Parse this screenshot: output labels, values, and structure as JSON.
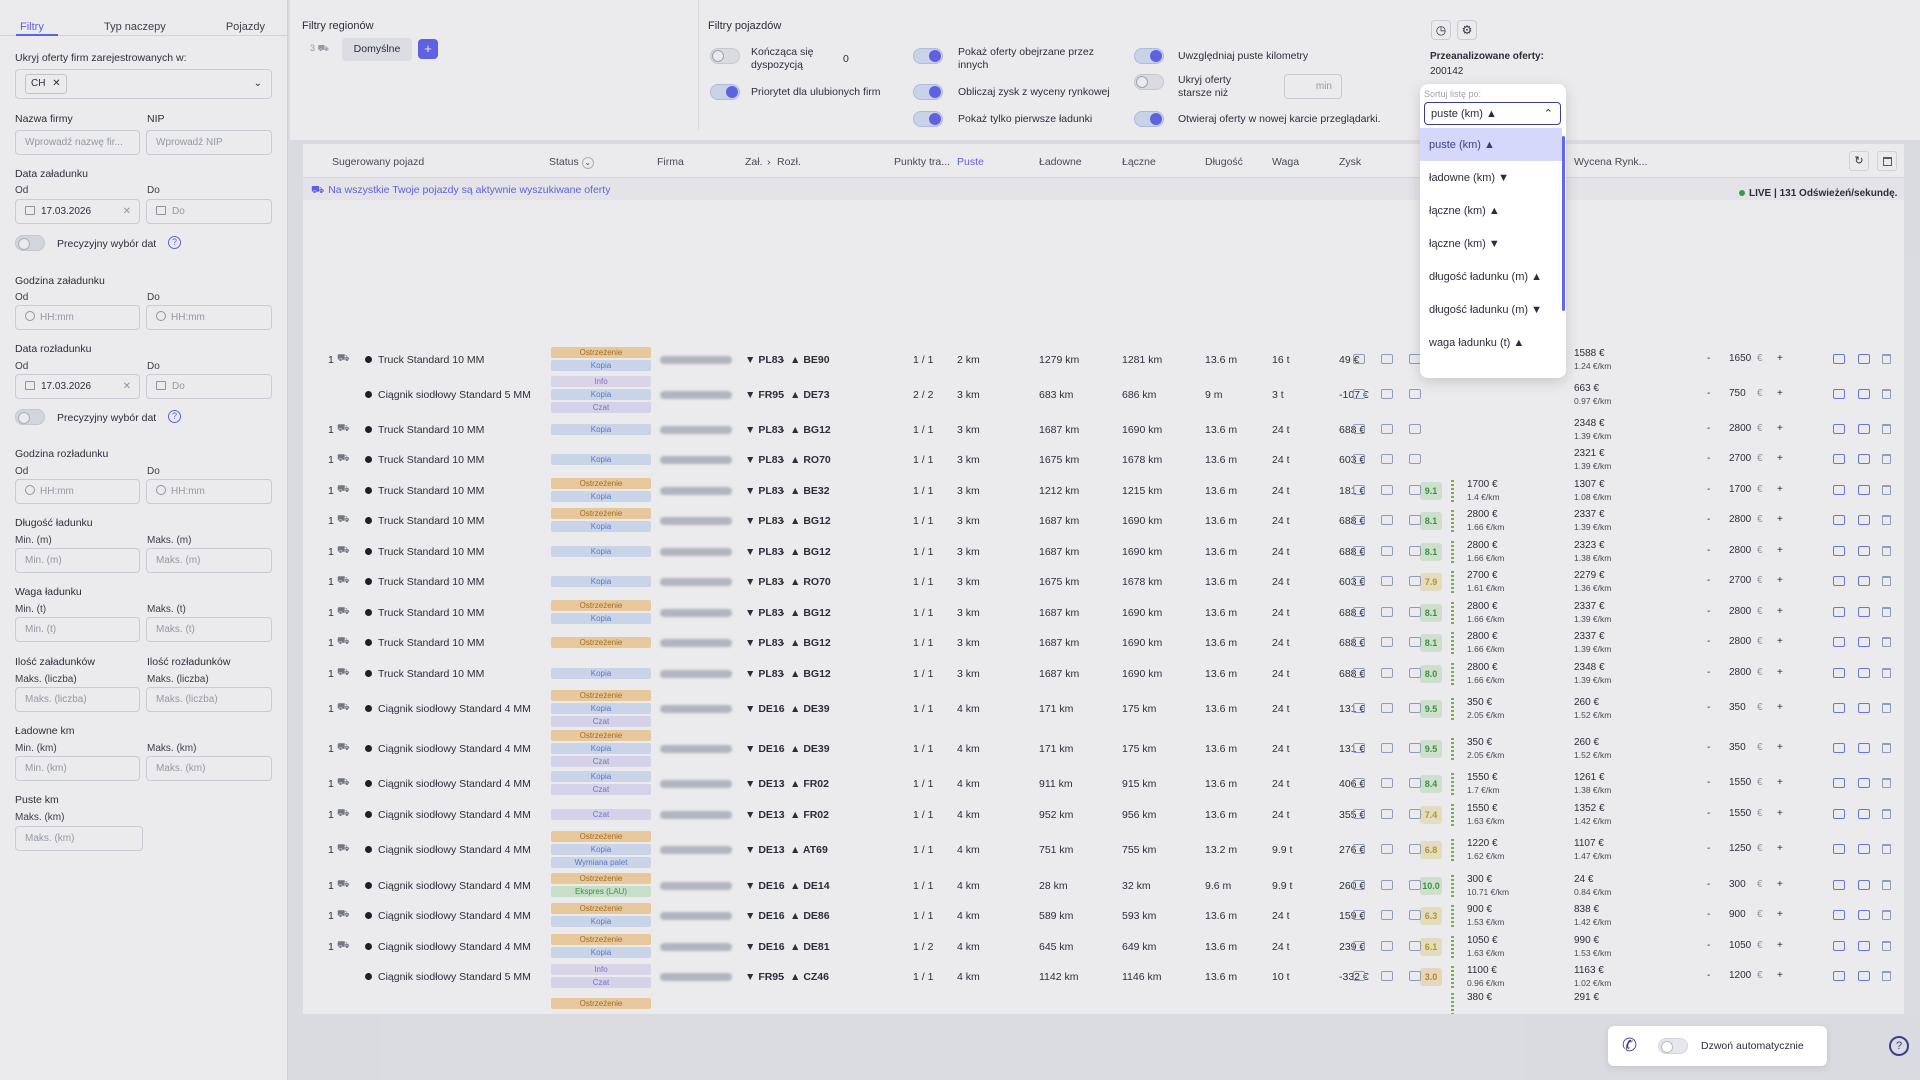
{
  "sidebar": {
    "tabs": [
      "Filtry",
      "Typ naczepy",
      "Pojazdy"
    ],
    "hide_label": "Ukryj oferty firm zarejestrowanych w:",
    "country_chip": "CH",
    "company_label": "Nazwa firmy",
    "company_ph": "Wprowadź nazwę fir...",
    "nip_label": "NIP",
    "nip_ph": "Wprowadź NIP",
    "load_date_label": "Data załadunku",
    "from": "Od",
    "to": "Do",
    "load_date_from": "17.03.2026",
    "date_ph": "Do",
    "precise_label": "Precyzyjny wybór dat",
    "load_hour_label": "Godzina załadunku",
    "time_ph": "HH:mm",
    "unload_date_label": "Data rozładunku",
    "unload_date_from": "17.03.2026",
    "unload_hour_label": "Godzina rozładunku",
    "length_label": "Długość ładunku",
    "min_m": "Min. (m)",
    "max_m": "Maks. (m)",
    "weight_label": "Waga ładunku",
    "min_t": "Min. (t)",
    "max_t": "Maks. (t)",
    "loads_count_label": "Ilość załadunków",
    "unloads_count_label": "Ilość rozładunków",
    "max_count": "Maks. (liczba)",
    "laden_km_label": "Ładowne km",
    "min_km": "Min. (km)",
    "max_km": "Maks. (km)",
    "empty_km_label": "Puste km"
  },
  "regions": {
    "title": "Filtry regionów",
    "count": "3",
    "default": "Domyślne",
    "add": "+"
  },
  "vehicle_filters": {
    "title": "Filtry pojazdów",
    "ends_with": "Kończąca się dyspozycją",
    "ends_value": "0",
    "priority": "Priorytet dla ulubionych firm",
    "viewed": "Pokaż oferty obejrzane przez innych",
    "profit": "Obliczaj zysk z wyceny rynkowej",
    "first_loads": "Pokaż tylko pierwsze ładunki",
    "empty_km": "Uwzględniaj puste kilometry",
    "hide_older": "Ukryj oferty starsze niż",
    "min_unit": "min",
    "new_tab": "Otwieraj oferty w nowej karcie przeglądarki."
  },
  "analyzed": {
    "label": "Przeanalizowane oferty:",
    "value": "200142"
  },
  "table": {
    "headers": [
      "Sugerowany pojazd",
      "Status",
      "Firma",
      "Zał.",
      "Rozł.",
      "Punkty tra...",
      "Puste",
      "Ładowne",
      "Łączne",
      "Długość",
      "Waga",
      "Zysk",
      "Wycena Rynk..."
    ],
    "notice": "Na wszystkie Twoje pojazdy są aktywnie wyszukiwane oferty",
    "live": "LIVE | 131 Odświeżeń/sekundę.",
    "rows": [
      {
        "n": "1",
        "veh": "Truck Standard 10 MM",
        "badges": [
          "Ostrzeżenie",
          "Kopia"
        ],
        "from": "PL83",
        "to": "BE90",
        "pts": "1 / 1",
        "empty": "2 km",
        "laden": "1279 km",
        "total": "1281 km",
        "len": "13.6 m",
        "w": "16 t",
        "profit": "49 €",
        "price": "",
        "perkm": "",
        "market": "1588 €",
        "mkm": "1.24 €/km",
        "bid": "1650"
      },
      {
        "n": "",
        "veh": "Ciągnik siodłowy Standard 5 MM",
        "badges": [
          "Info",
          "Kopia",
          "Czat"
        ],
        "from": "FR95",
        "to": "DE73",
        "pts": "2 / 2",
        "empty": "3 km",
        "laden": "683 km",
        "total": "686 km",
        "len": "9 m",
        "w": "3 t",
        "profit": "-107 €",
        "price": "",
        "perkm": "",
        "market": "663 €",
        "mkm": "0.97 €/km",
        "bid": "750"
      },
      {
        "n": "1",
        "veh": "Truck Standard 10 MM",
        "badges": [
          "Kopia"
        ],
        "from": "PL83",
        "to": "BG12",
        "pts": "1 / 1",
        "empty": "3 km",
        "laden": "1687 km",
        "total": "1690 km",
        "len": "13.6 m",
        "w": "24 t",
        "profit": "688 €",
        "price": "",
        "perkm": "",
        "market": "2348 €",
        "mkm": "1.39 €/km",
        "bid": "2800"
      },
      {
        "n": "1",
        "veh": "Truck Standard 10 MM",
        "badges": [
          "Kopia"
        ],
        "from": "PL83",
        "to": "RO70",
        "pts": "1 / 1",
        "empty": "3 km",
        "laden": "1675 km",
        "total": "1678 km",
        "len": "13.6 m",
        "w": "24 t",
        "profit": "603 €",
        "price": "",
        "perkm": "",
        "market": "2321 €",
        "mkm": "1.39 €/km",
        "bid": "2700"
      },
      {
        "n": "1",
        "veh": "Truck Standard 10 MM",
        "badges": [
          "Ostrzeżenie",
          "Kopia"
        ],
        "from": "PL83",
        "to": "BE32",
        "pts": "1 / 1",
        "empty": "3 km",
        "laden": "1212 km",
        "total": "1215 km",
        "len": "13.6 m",
        "w": "24 t",
        "profit": "181 €",
        "score": "9.1",
        "price": "1700 €",
        "perkm": "1.4 €/km",
        "market": "1307 €",
        "mkm": "1.08 €/km",
        "bid": "1700"
      },
      {
        "n": "1",
        "veh": "Truck Standard 10 MM",
        "badges": [
          "Ostrzeżenie",
          "Kopia"
        ],
        "from": "PL83",
        "to": "BG12",
        "pts": "1 / 1",
        "empty": "3 km",
        "laden": "1687 km",
        "total": "1690 km",
        "len": "13.6 m",
        "w": "24 t",
        "profit": "688 €",
        "score": "8.1",
        "price": "2800 €",
        "perkm": "1.66 €/km",
        "market": "2337 €",
        "mkm": "1.39 €/km",
        "bid": "2800"
      },
      {
        "n": "1",
        "veh": "Truck Standard 10 MM",
        "badges": [
          "Kopia"
        ],
        "from": "PL83",
        "to": "BG12",
        "pts": "1 / 1",
        "empty": "3 km",
        "laden": "1687 km",
        "total": "1690 km",
        "len": "13.6 m",
        "w": "24 t",
        "profit": "688 €",
        "score": "8.1",
        "price": "2800 €",
        "perkm": "1.66 €/km",
        "market": "2323 €",
        "mkm": "1.38 €/km",
        "bid": "2800"
      },
      {
        "n": "1",
        "veh": "Truck Standard 10 MM",
        "badges": [
          "Kopia"
        ],
        "from": "PL83",
        "to": "RO70",
        "pts": "1 / 1",
        "empty": "3 km",
        "laden": "1675 km",
        "total": "1678 km",
        "len": "13.6 m",
        "w": "24 t",
        "profit": "603 €",
        "score": "7.9",
        "price": "2700 €",
        "perkm": "1.61 €/km",
        "market": "2279 €",
        "mkm": "1.36 €/km",
        "bid": "2700"
      },
      {
        "n": "1",
        "veh": "Truck Standard 10 MM",
        "badges": [
          "Ostrzeżenie",
          "Kopia"
        ],
        "from": "PL83",
        "to": "BG12",
        "pts": "1 / 1",
        "empty": "3 km",
        "laden": "1687 km",
        "total": "1690 km",
        "len": "13.6 m",
        "w": "24 t",
        "profit": "688 €",
        "score": "8.1",
        "price": "2800 €",
        "perkm": "1.66 €/km",
        "market": "2337 €",
        "mkm": "1.39 €/km",
        "bid": "2800"
      },
      {
        "n": "1",
        "veh": "Truck Standard 10 MM",
        "badges": [
          "Ostrzeżenie"
        ],
        "from": "PL83",
        "to": "BG12",
        "pts": "1 / 1",
        "empty": "3 km",
        "laden": "1687 km",
        "total": "1690 km",
        "len": "13.6 m",
        "w": "24 t",
        "profit": "688 €",
        "score": "8.1",
        "price": "2800 €",
        "perkm": "1.66 €/km",
        "market": "2337 €",
        "mkm": "1.39 €/km",
        "bid": "2800"
      },
      {
        "n": "1",
        "veh": "Truck Standard 10 MM",
        "badges": [
          "Kopia"
        ],
        "from": "PL83",
        "to": "BG12",
        "pts": "1 / 1",
        "empty": "3 km",
        "laden": "1687 km",
        "total": "1690 km",
        "len": "13.6 m",
        "w": "24 t",
        "profit": "688 €",
        "score": "8.0",
        "price": "2800 €",
        "perkm": "1.66 €/km",
        "market": "2348 €",
        "mkm": "1.39 €/km",
        "bid": "2800"
      },
      {
        "n": "1",
        "veh": "Ciągnik siodłowy Standard 4 MM",
        "badges": [
          "Ostrzeżenie",
          "Kopia",
          "Czat"
        ],
        "from": "DE16",
        "to": "DE39",
        "pts": "1 / 1",
        "empty": "4 km",
        "laden": "171 km",
        "total": "175 km",
        "len": "13.6 m",
        "w": "24 t",
        "profit": "131 €",
        "score": "9.5",
        "price": "350 €",
        "perkm": "2.05 €/km",
        "market": "260 €",
        "mkm": "1.52 €/km",
        "bid": "350"
      },
      {
        "n": "1",
        "veh": "Ciągnik siodłowy Standard 4 MM",
        "badges": [
          "Ostrzeżenie",
          "Kopia",
          "Czat"
        ],
        "from": "DE16",
        "to": "DE39",
        "pts": "1 / 1",
        "empty": "4 km",
        "laden": "171 km",
        "total": "175 km",
        "len": "13.6 m",
        "w": "24 t",
        "profit": "131 €",
        "score": "9.5",
        "price": "350 €",
        "perkm": "2.05 €/km",
        "market": "260 €",
        "mkm": "1.52 €/km",
        "bid": "350"
      },
      {
        "n": "1",
        "veh": "Ciągnik siodłowy Standard 4 MM",
        "badges": [
          "Kopia",
          "Czat"
        ],
        "from": "DE13",
        "to": "FR02",
        "pts": "1 / 1",
        "empty": "4 km",
        "laden": "911 km",
        "total": "915 km",
        "len": "13.6 m",
        "w": "24 t",
        "profit": "406 €",
        "score": "8.4",
        "price": "1550 €",
        "perkm": "1.7 €/km",
        "market": "1261 €",
        "mkm": "1.38 €/km",
        "bid": "1550"
      },
      {
        "n": "1",
        "veh": "Ciągnik siodłowy Standard 4 MM",
        "badges": [
          "Czat"
        ],
        "from": "DE13",
        "to": "FR02",
        "pts": "1 / 1",
        "empty": "4 km",
        "laden": "952 km",
        "total": "956 km",
        "len": "13.6 m",
        "w": "24 t",
        "profit": "355 €",
        "score": "7.4",
        "price": "1550 €",
        "perkm": "1.63 €/km",
        "market": "1352 €",
        "mkm": "1.42 €/km",
        "bid": "1550"
      },
      {
        "n": "1",
        "veh": "Ciągnik siodłowy Standard 4 MM",
        "badges": [
          "Ostrzeżenie",
          "Kopia",
          "Wymiana palet"
        ],
        "from": "DE13",
        "to": "AT69",
        "pts": "1 / 1",
        "empty": "4 km",
        "laden": "751 km",
        "total": "755 km",
        "len": "13.2 m",
        "w": "9.9 t",
        "profit": "276 €",
        "score": "6.8",
        "price": "1220 €",
        "perkm": "1.62 €/km",
        "market": "1107 €",
        "mkm": "1.47 €/km",
        "bid": "1250"
      },
      {
        "n": "1",
        "veh": "Ciągnik siodłowy Standard 4 MM",
        "badges": [
          "Ostrzeżenie",
          "Ekspres (LAU)"
        ],
        "from": "DE16",
        "to": "DE14",
        "pts": "1 / 1",
        "empty": "4 km",
        "laden": "28 km",
        "total": "32 km",
        "len": "9.6 m",
        "w": "9.9 t",
        "profit": "260 €",
        "score": "10.0",
        "price": "300 €",
        "perkm": "10.71 €/km",
        "market": "24 €",
        "mkm": "0.84 €/km",
        "bid": "300"
      },
      {
        "n": "1",
        "veh": "Ciągnik siodłowy Standard 4 MM",
        "badges": [
          "Ostrzeżenie",
          "Kopia"
        ],
        "from": "DE16",
        "to": "DE86",
        "pts": "1 / 1",
        "empty": "4 km",
        "laden": "589 km",
        "total": "593 km",
        "len": "13.6 m",
        "w": "24 t",
        "profit": "159 €",
        "score": "6.3",
        "price": "900 €",
        "perkm": "1.53 €/km",
        "market": "838 €",
        "mkm": "1.42 €/km",
        "bid": "900"
      },
      {
        "n": "1",
        "veh": "Ciągnik siodłowy Standard 4 MM",
        "badges": [
          "Ostrzeżenie",
          "Kopia"
        ],
        "from": "DE16",
        "to": "DE81",
        "pts": "1 / 2",
        "empty": "4 km",
        "laden": "645 km",
        "total": "649 km",
        "len": "13.6 m",
        "w": "24 t",
        "profit": "239 €",
        "score": "6.1",
        "price": "1050 €",
        "perkm": "1.63 €/km",
        "market": "990 €",
        "mkm": "1.53 €/km",
        "bid": "1050"
      },
      {
        "n": "",
        "veh": "Ciągnik siodłowy Standard 5 MM",
        "badges": [
          "Info",
          "Czat"
        ],
        "from": "FR95",
        "to": "CZ46",
        "pts": "1 / 1",
        "empty": "4 km",
        "laden": "1142 km",
        "total": "1146 km",
        "len": "13.6 m",
        "w": "10 t",
        "profit": "-332 €",
        "score": "3.0",
        "price": "1100 €",
        "perkm": "0.96 €/km",
        "market": "1163 €",
        "mkm": "1.02 €/km",
        "bid": "1200"
      },
      {
        "n": "",
        "veh": "",
        "badges": [
          "Ostrzeżenie"
        ],
        "from": "",
        "to": "",
        "pts": "",
        "empty": "",
        "laden": "",
        "total": "",
        "len": "",
        "w": "",
        "profit": "",
        "score": "",
        "price": "380 €",
        "perkm": "",
        "market": "291 €",
        "mkm": "",
        "bid": ""
      }
    ]
  },
  "sort": {
    "label": "Sortuj listę po:",
    "selected": "puste (km) ▲",
    "options": [
      "puste (km) ▲",
      "ładowne (km) ▼",
      "łączne (km) ▲",
      "łączne (km) ▼",
      "długość ładunku (m) ▲",
      "długość ładunku (m) ▼",
      "waga ładunku (t) ▲"
    ]
  },
  "auto_call": {
    "label": "Dzwoń automatycznie"
  },
  "colors": {
    "accent": "#6366f1",
    "live": "#2fa84f",
    "warn": "#fbd8a6"
  },
  "icons": [
    "clock-icon",
    "settings-icon",
    "refresh-icon",
    "trash-icon",
    "phone-icon",
    "help-icon"
  ]
}
